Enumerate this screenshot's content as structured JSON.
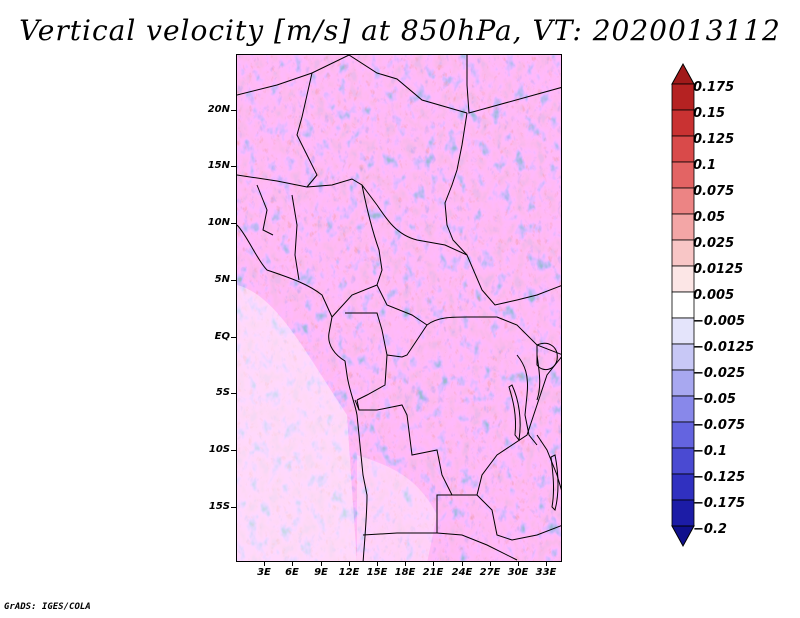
{
  "title": "Vertical velocity [m/s] at 850hPa, VT: 2020013112",
  "credit": "GrADS: IGES/COLA",
  "map": {
    "lat_labels": [
      "20N",
      "15N",
      "10N",
      "5N",
      "EQ",
      "5S",
      "10S",
      "15S"
    ],
    "lon_labels": [
      "3E",
      "6E",
      "9E",
      "12E",
      "15E",
      "18E",
      "21E",
      "24E",
      "27E",
      "30E",
      "33E"
    ]
  },
  "colorbar": {
    "labels": [
      "0.175",
      "0.15",
      "0.125",
      "0.1",
      "0.075",
      "0.05",
      "0.025",
      "0.0125",
      "0.005",
      "−0.005",
      "−0.0125",
      "−0.025",
      "−0.05",
      "−0.075",
      "−0.1",
      "−0.125",
      "−0.175",
      "−0.2"
    ],
    "colors": [
      "#a11a1a",
      "#b52222",
      "#c93232",
      "#d94a4a",
      "#e36464",
      "#ec8484",
      "#f3a6a6",
      "#f8c6c6",
      "#fce6e6",
      "#ffffff",
      "#e4e4fb",
      "#c8c8f6",
      "#a8a8f0",
      "#8888ea",
      "#6464e0",
      "#4a4ad2",
      "#3030c0",
      "#1c1ca6",
      "#10108c"
    ]
  },
  "colors": {
    "positive": "#e0483a",
    "negative": "#5050e0"
  }
}
